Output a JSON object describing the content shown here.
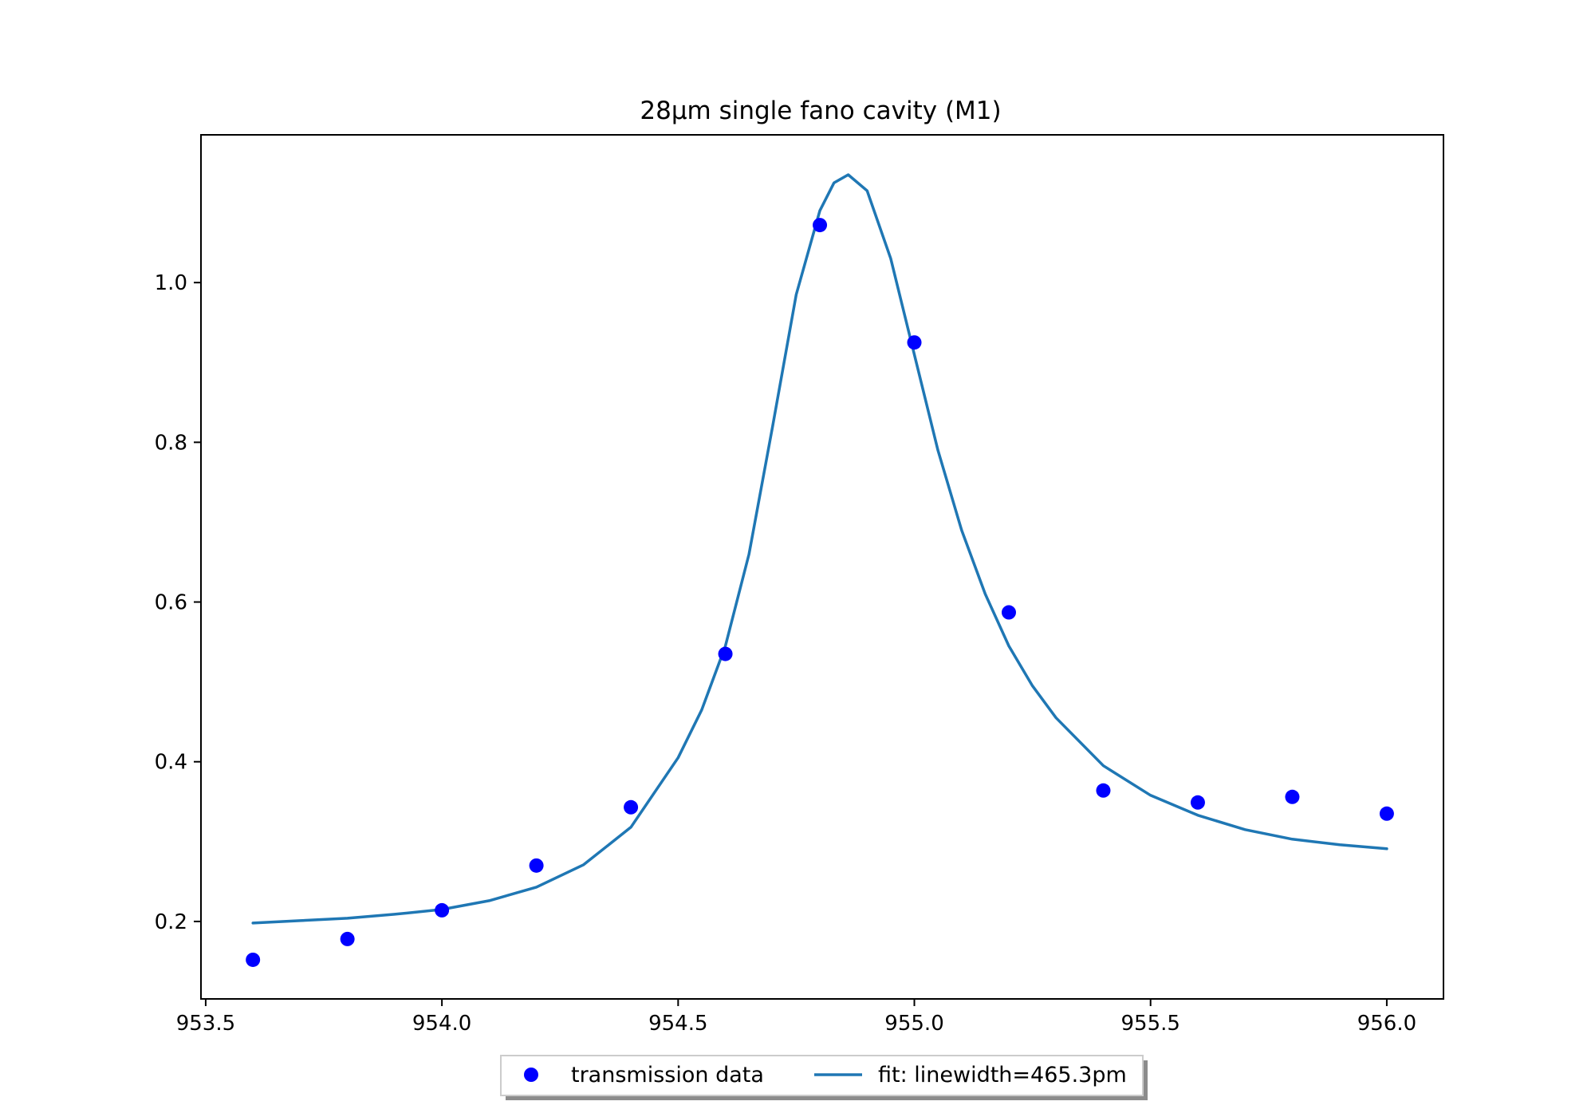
{
  "chart_data": {
    "type": "scatter",
    "title": "28µm single fano cavity (M1)",
    "xlabel": "",
    "ylabel": "",
    "xlim": [
      953.49,
      956.12
    ],
    "ylim": [
      0.103,
      1.185
    ],
    "x_ticks": [
      953.5,
      954.0,
      954.5,
      955.0,
      955.5,
      956.0
    ],
    "x_tick_labels": [
      "953.5",
      "954.0",
      "954.5",
      "955.0",
      "955.5",
      "956.0"
    ],
    "y_ticks": [
      0.2,
      0.4,
      0.6,
      0.8,
      1.0
    ],
    "y_tick_labels": [
      "0.2",
      "0.4",
      "0.6",
      "0.8",
      "1.0"
    ],
    "grid": false,
    "legend_position": "below-center",
    "series": [
      {
        "name": "transmission data",
        "kind": "points",
        "color": "#0000ff",
        "x": [
          953.6,
          953.8,
          954.0,
          954.2,
          954.4,
          954.6,
          954.8,
          955.0,
          955.2,
          955.4,
          955.6,
          955.8,
          956.0
        ],
        "y": [
          0.152,
          0.178,
          0.214,
          0.27,
          0.343,
          0.535,
          1.072,
          0.925,
          0.587,
          0.364,
          0.349,
          0.356,
          0.335
        ]
      },
      {
        "name": "fit: linewidth=465.3pm",
        "kind": "line",
        "color": "#1f77b4",
        "x": [
          953.6,
          953.7,
          953.8,
          953.9,
          954.0,
          954.1,
          954.2,
          954.3,
          954.4,
          954.5,
          954.55,
          954.6,
          954.65,
          954.7,
          954.75,
          954.8,
          954.83,
          954.86,
          954.9,
          954.95,
          955.0,
          955.05,
          955.1,
          955.15,
          955.2,
          955.25,
          955.3,
          955.4,
          955.5,
          955.6,
          955.7,
          955.8,
          955.9,
          956.0
        ],
        "y": [
          0.198,
          0.201,
          0.204,
          0.209,
          0.215,
          0.226,
          0.243,
          0.271,
          0.318,
          0.405,
          0.465,
          0.545,
          0.66,
          0.82,
          0.985,
          1.09,
          1.125,
          1.135,
          1.115,
          1.03,
          0.91,
          0.79,
          0.69,
          0.61,
          0.545,
          0.495,
          0.455,
          0.395,
          0.358,
          0.333,
          0.315,
          0.303,
          0.296,
          0.291
        ]
      }
    ]
  }
}
